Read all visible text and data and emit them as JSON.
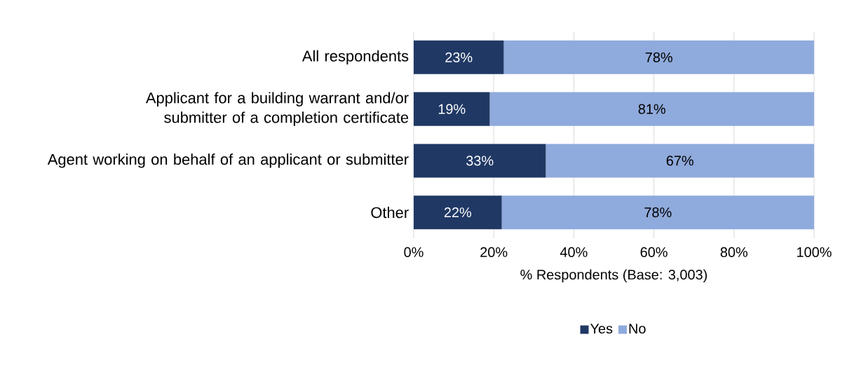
{
  "chart_data": {
    "type": "bar",
    "orientation": "horizontal",
    "stacked": true,
    "categories": [
      "All respondents",
      "Applicant for a building warrant and/or submitter of a completion certificate",
      "Agent working on behalf of an applicant or submitter",
      "Other"
    ],
    "series": [
      {
        "name": "Yes",
        "color": "#203864",
        "values": [
          22.5,
          19,
          33,
          22
        ],
        "value_labels": [
          "23%",
          "19%",
          "33%",
          "22%"
        ]
      },
      {
        "name": "No",
        "color": "#8faadc",
        "values": [
          77.5,
          81,
          67,
          78
        ],
        "value_labels": [
          "78%",
          "81%",
          "67%",
          "78%"
        ]
      }
    ],
    "xlabel": "% Respondents (Base: 3,003)",
    "xlim": [
      0,
      100
    ],
    "xticks": [
      {
        "value": 0,
        "label": "0%"
      },
      {
        "value": 20,
        "label": "20%"
      },
      {
        "value": 40,
        "label": "40%"
      },
      {
        "value": 60,
        "label": "60%"
      },
      {
        "value": 80,
        "label": "80%"
      },
      {
        "value": 100,
        "label": "100%"
      }
    ],
    "grid": "x",
    "legend": "bottom"
  }
}
